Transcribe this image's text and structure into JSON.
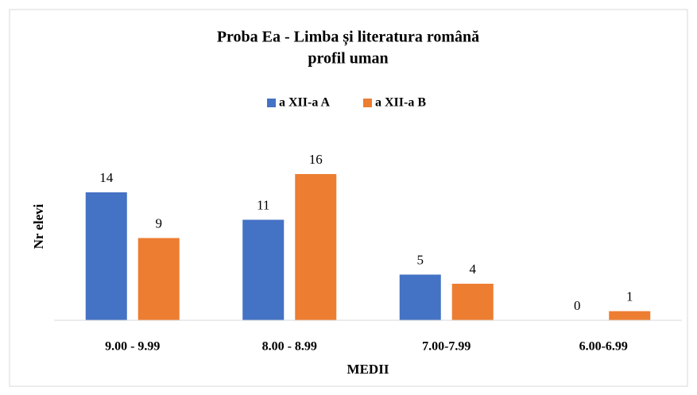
{
  "chart_data": {
    "type": "bar",
    "title": "Proba Ea - Limba și literatura română",
    "subtitle": "profil uman",
    "xlabel": "MEDII",
    "ylabel": "Nr elevi",
    "categories": [
      "9.00 - 9.99",
      "8.00 - 8.99",
      "7.00-7.99",
      "6.00-6.99"
    ],
    "series": [
      {
        "name": "a XII-a A",
        "color": "#4472c4",
        "values": [
          14,
          11,
          5,
          0
        ]
      },
      {
        "name": "a XII-a B",
        "color": "#ed7d31",
        "values": [
          9,
          16,
          4,
          1
        ]
      }
    ],
    "ylim": [
      0,
      20
    ],
    "legend": "top"
  }
}
